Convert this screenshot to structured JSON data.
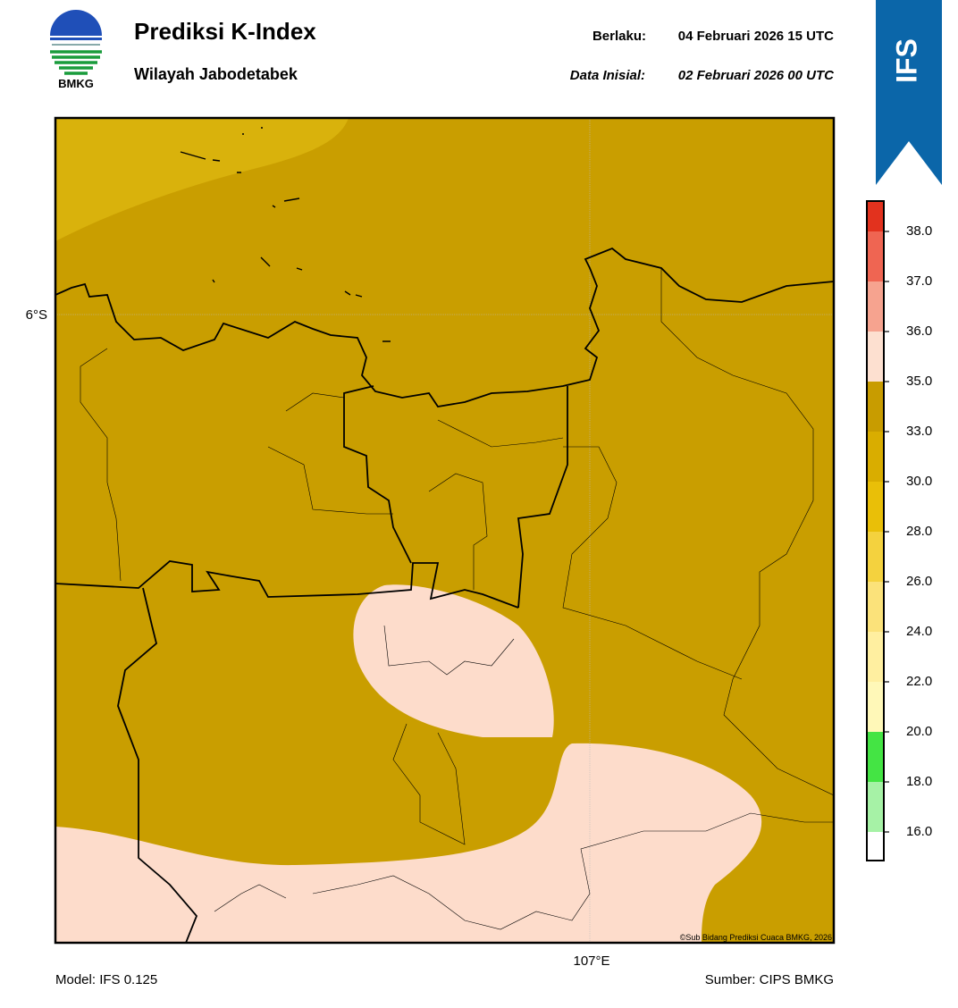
{
  "header": {
    "logo_text": "BMKG",
    "title": "Prediksi K-Index",
    "subtitle": "Wilayah Jabodetabek",
    "valid_label": "Berlaku:",
    "valid_time": "04 Februari 2026 15 UTC",
    "init_label": "Data Inisial:",
    "init_time": "02 Februari 2026 00 UTC",
    "model_badge": "IFS"
  },
  "map": {
    "lat_label": "6°S",
    "lon_label": "107°E",
    "credit": "©Sub Bidang Prediksi Cuaca BMKG, 2026"
  },
  "colorbar": {
    "ticks": [
      {
        "value": 16,
        "label": "16.0"
      },
      {
        "value": 18,
        "label": "18.0"
      },
      {
        "value": 20,
        "label": "20.0"
      },
      {
        "value": 22,
        "label": "22.0"
      },
      {
        "value": 24,
        "label": "24.0"
      },
      {
        "value": 26,
        "label": "26.0"
      },
      {
        "value": 28,
        "label": "28.0"
      },
      {
        "value": 30,
        "label": "30.0"
      },
      {
        "value": 33,
        "label": "33.0"
      },
      {
        "value": 35,
        "label": "35.0"
      },
      {
        "value": 36,
        "label": "36.0"
      },
      {
        "value": 37,
        "label": "37.0"
      },
      {
        "value": 38,
        "label": "38.0"
      }
    ],
    "colors": [
      "#ffffff",
      "#a6f2a6",
      "#44e444",
      "#fff8b8",
      "#ffefa0",
      "#fbe27a",
      "#f4d23e",
      "#e9bf08",
      "#d9ad00",
      "#c89c00",
      "#fde0d0",
      "#f6a38f",
      "#ef6552",
      "#e2321e"
    ]
  },
  "footer": {
    "model": "Model: IFS 0.125",
    "source": "Sumber: CIPS BMKG"
  }
}
